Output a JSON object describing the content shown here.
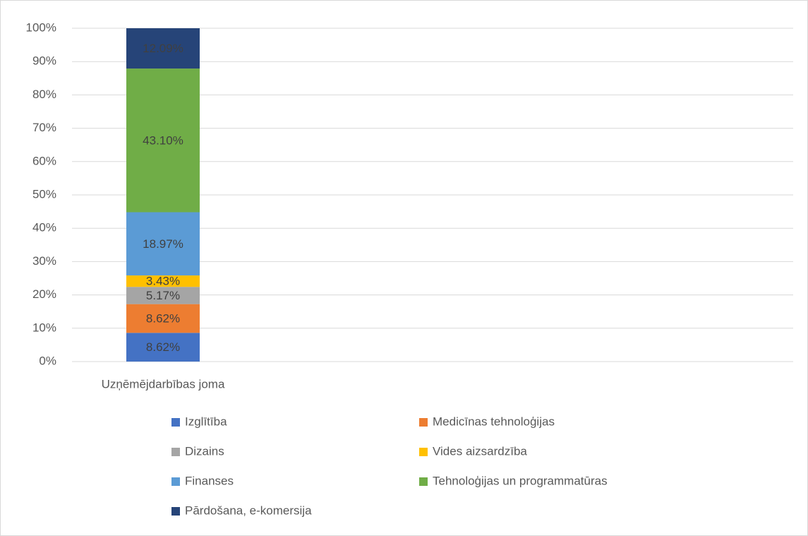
{
  "chart_data": {
    "type": "stacked_bar",
    "categories": [
      "Uzņēmējdarbības joma"
    ],
    "series": [
      {
        "name": "Izglītība",
        "color": "#4472c4",
        "values": [
          8.62
        ],
        "value_labels": [
          "8.62%"
        ]
      },
      {
        "name": "Medicīnas tehnoloģijas",
        "color": "#ed7d31",
        "values": [
          8.62
        ],
        "value_labels": [
          "8.62%"
        ]
      },
      {
        "name": "Dizains",
        "color": "#a5a5a5",
        "values": [
          5.17
        ],
        "value_labels": [
          "5.17%"
        ]
      },
      {
        "name": "Vides aizsardzība",
        "color": "#ffc000",
        "values": [
          3.43
        ],
        "value_labels": [
          "3.43%"
        ]
      },
      {
        "name": "Finanses",
        "color": "#5b9bd5",
        "values": [
          18.97
        ],
        "value_labels": [
          "18.97%"
        ]
      },
      {
        "name": "Tehnoloģijas un programmatūras",
        "color": "#70ad47",
        "values": [
          43.1
        ],
        "value_labels": [
          "43.10%"
        ]
      },
      {
        "name": "Pārdošana, e-komersija",
        "color": "#264478",
        "values": [
          12.09
        ],
        "value_labels": [
          "12.09%"
        ]
      }
    ],
    "ylim": [
      0,
      100
    ],
    "yticks": [
      {
        "value": 0,
        "label": "0%"
      },
      {
        "value": 10,
        "label": "10%"
      },
      {
        "value": 20,
        "label": "20%"
      },
      {
        "value": 30,
        "label": "30%"
      },
      {
        "value": 40,
        "label": "40%"
      },
      {
        "value": 50,
        "label": "50%"
      },
      {
        "value": 60,
        "label": "60%"
      },
      {
        "value": 70,
        "label": "70%"
      },
      {
        "value": 80,
        "label": "80%"
      },
      {
        "value": 90,
        "label": "90%"
      },
      {
        "value": 100,
        "label": "100%"
      }
    ],
    "grid": true,
    "legend": "bottom"
  }
}
